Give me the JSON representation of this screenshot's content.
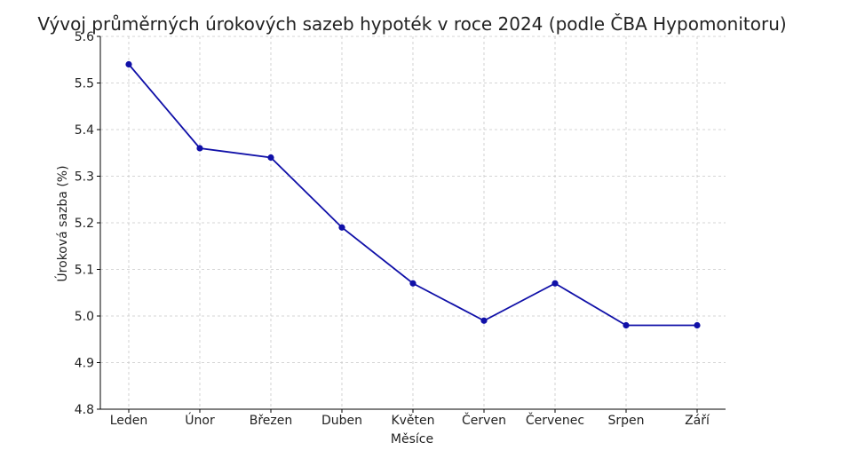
{
  "chart_data": {
    "type": "line",
    "title": "Vývoj průměrných úrokových sazeb hypoték v roce 2024 (podle ČBA Hypomonitoru)",
    "xlabel": "Měsíce",
    "ylabel": "Úroková sazba (%)",
    "categories": [
      "Leden",
      "Únor",
      "Březen",
      "Duben",
      "Květen",
      "Červen",
      "Červenec",
      "Srpen",
      "Září"
    ],
    "series": [
      {
        "values": [
          5.54,
          5.36,
          5.34,
          5.19,
          5.07,
          4.99,
          5.07,
          4.98,
          4.98
        ],
        "color": "#1010a8"
      }
    ],
    "ylim": [
      4.8,
      5.6
    ],
    "yticks": [
      "4.8",
      "4.9",
      "5.0",
      "5.1",
      "5.2",
      "5.3",
      "5.4",
      "5.5",
      "5.6"
    ],
    "grid": true,
    "legend": "none"
  }
}
